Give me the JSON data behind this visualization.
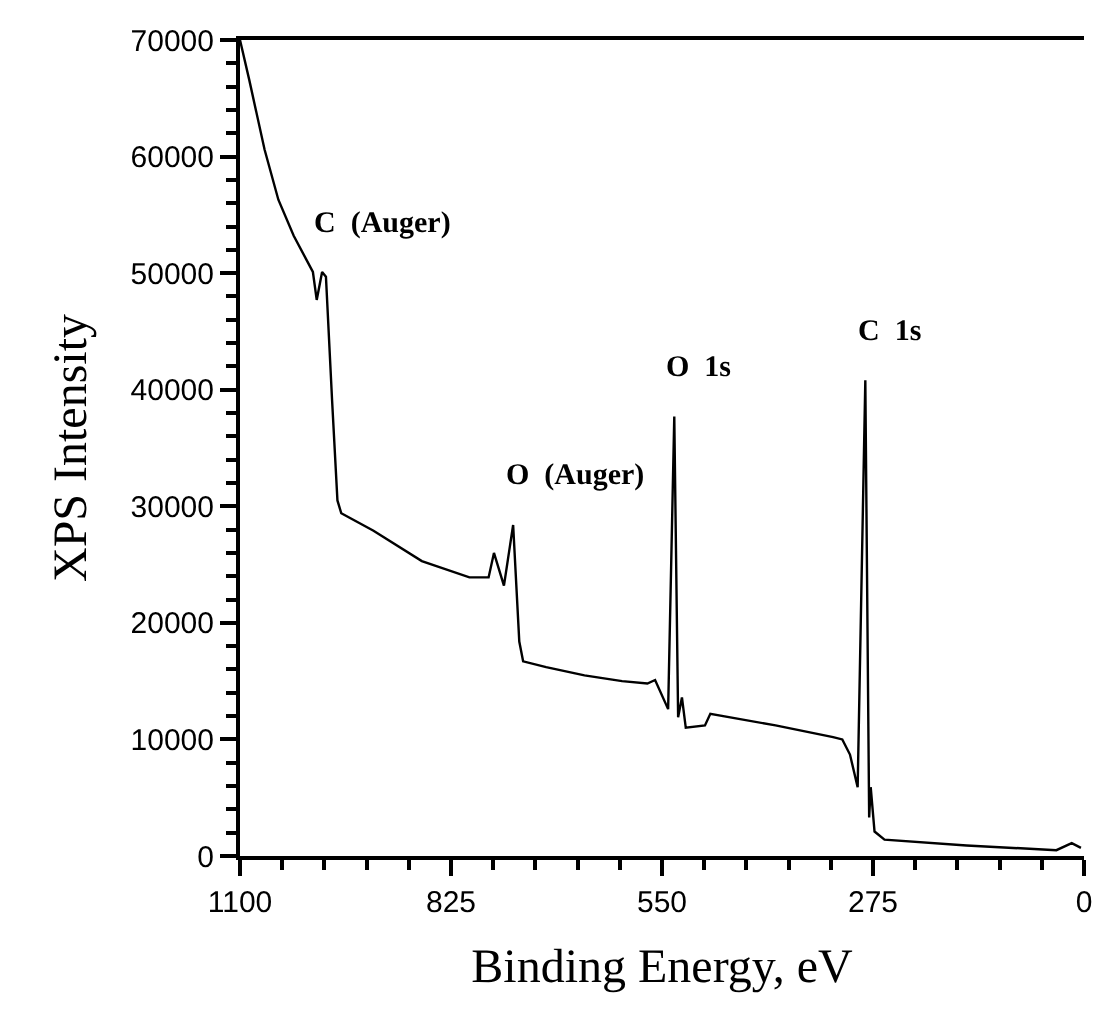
{
  "chart_data": {
    "type": "line",
    "xlabel": "Binding Energy, eV",
    "ylabel": "XPS Intensity",
    "x": [
      1100,
      1088,
      1068,
      1050,
      1030,
      1013,
      1005,
      1000,
      993,
      988,
      980,
      973,
      968,
      926,
      863,
      801,
      776,
      769,
      756,
      744,
      736,
      731,
      701,
      651,
      602,
      569,
      559,
      542,
      534,
      529,
      524,
      519,
      494,
      487,
      402,
      327,
      315,
      305,
      295,
      285,
      280,
      278,
      273,
      260,
      153,
      36,
      16,
      4
    ],
    "series": [
      {
        "color": "#000000",
        "values": [
          70000,
          66600,
          60600,
          56300,
          53200,
          51100,
          50100,
          47700,
          50100,
          49700,
          39100,
          30500,
          29400,
          27900,
          25300,
          23900,
          23900,
          26000,
          23200,
          28400,
          18400,
          16700,
          16200,
          15500,
          15000,
          14800,
          15100,
          12600,
          37700,
          11900,
          13600,
          11000,
          11200,
          12200,
          11200,
          10200,
          10000,
          8700,
          5900,
          40800,
          3300,
          5900,
          2100,
          1400,
          900,
          500,
          1100,
          700
        ]
      }
    ],
    "xlim": [
      1100,
      0
    ],
    "xticks": [
      1100,
      825,
      550,
      275,
      0
    ],
    "ylim": [
      0,
      70000
    ],
    "yticks": [
      0,
      10000,
      20000,
      30000,
      40000,
      50000,
      60000,
      70000
    ],
    "legend": false,
    "marker": "none",
    "line_style": "solid",
    "annotations": [
      {
        "text": "C  (Auger)",
        "x": 993,
        "y": 50100
      },
      {
        "text": "O  (Auger)",
        "x": 744,
        "y": 28400
      },
      {
        "text": "O  1s",
        "x": 534,
        "y": 37700
      },
      {
        "text": "C  1s",
        "x": 285,
        "y": 40800
      }
    ]
  }
}
